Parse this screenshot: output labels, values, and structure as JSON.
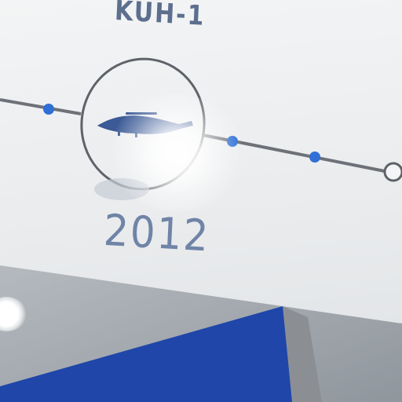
{
  "exhibit": {
    "model": "KUH-1",
    "year": "2012"
  },
  "colors": {
    "timeline_line": "#6e7178",
    "timeline_dot": "#2f6fd6",
    "ring": "#5e6269",
    "helicopter": "#3b5a96",
    "wall_panel": "#1f46a8"
  },
  "icons": {
    "helicopter": "helicopter-icon",
    "end_marker": "hollow-circle"
  }
}
